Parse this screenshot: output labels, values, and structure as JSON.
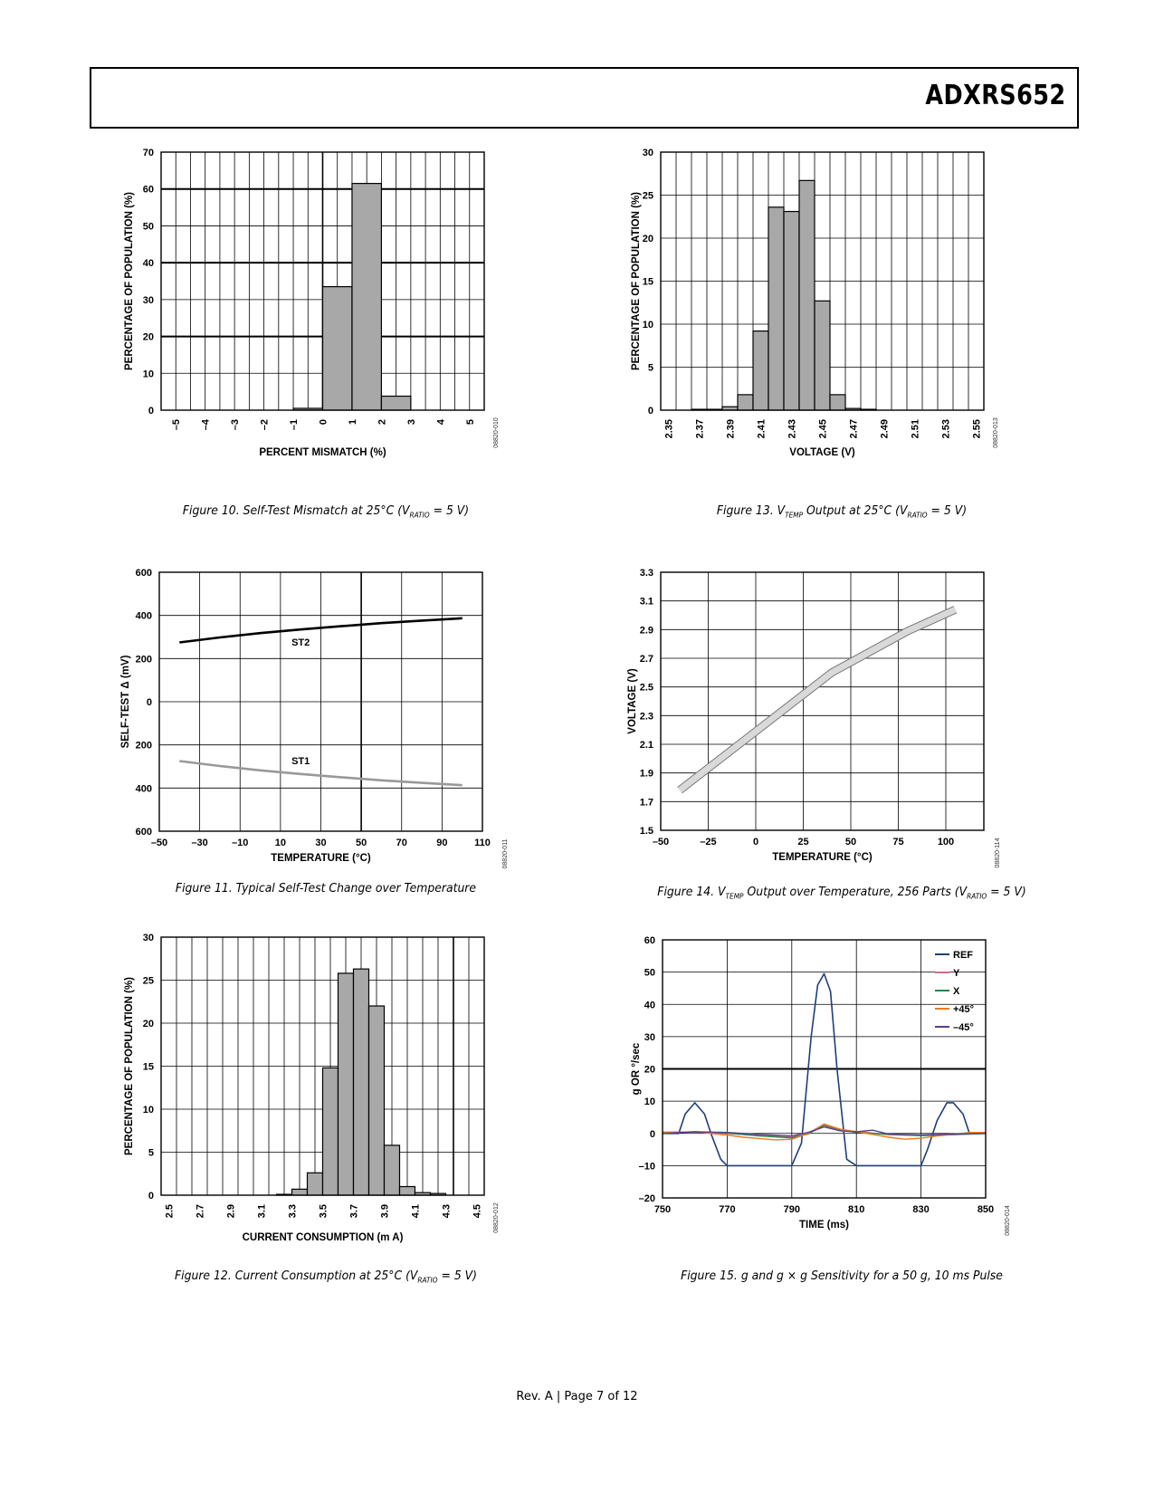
{
  "header": {
    "part_number": "ADXRS652"
  },
  "footer": {
    "text": "Rev. A | Page 7 of 12"
  },
  "figures": [
    {
      "id": "fig10",
      "caption_main": "Figure 10. Self-Test Mismatch at 25°C (V",
      "caption_sub": "RATIO",
      "caption_tail": " = 5 V)",
      "code": "08820-010"
    },
    {
      "id": "fig11",
      "caption_main": "Figure 11. Typical Self-Test Change over Temperature",
      "caption_sub": "",
      "caption_tail": "",
      "code": "08820-011"
    },
    {
      "id": "fig12",
      "caption_main": "Figure 12. Current Consumption at 25°C (V",
      "caption_sub": "RATIO",
      "caption_tail": " = 5 V)",
      "code": "08820-012"
    },
    {
      "id": "fig13",
      "caption_pre": "Figure 13. V",
      "caption_sub1": "TEMP",
      "caption_mid": " Output at 25°C (V",
      "caption_sub2": "RATIO",
      "caption_tail": " = 5 V)",
      "code": "08820-013"
    },
    {
      "id": "fig14",
      "caption_pre": "Figure 14. V",
      "caption_sub1": "TEMP",
      "caption_mid": " Output over Temperature, 256 Parts (V",
      "caption_sub2": "RATIO",
      "caption_tail": " = 5 V)",
      "code": "08820-114"
    },
    {
      "id": "fig15",
      "caption_main": "Figure 15. g and g × g Sensitivity for a 50 g, 10 ms Pulse",
      "code": "08820-014"
    }
  ],
  "chart_data": [
    {
      "id": "fig10",
      "type": "bar",
      "xlabel": "PERCENT MISMATCH (%)",
      "ylabel": "PERCENTAGE OF POPULATION (%)",
      "xlim": [
        -5.5,
        5.5
      ],
      "ylim": [
        0,
        70
      ],
      "xticks": [
        "–5",
        "–4",
        "–3",
        "–2",
        "–1",
        "0",
        "1",
        "2",
        "3",
        "4",
        "5"
      ],
      "xtick_values": [
        -5,
        -4,
        -3,
        -2,
        -1,
        0,
        1,
        2,
        3,
        4,
        5
      ],
      "yticks": [
        "0",
        "10",
        "20",
        "30",
        "40",
        "50",
        "60",
        "70"
      ],
      "bins": [
        [
          -1,
          0,
          0.5
        ],
        [
          0,
          1,
          33.5
        ],
        [
          1,
          2,
          61.5
        ],
        [
          2,
          3,
          3.8
        ]
      ],
      "grid": true
    },
    {
      "id": "fig11",
      "type": "line",
      "xlabel": "TEMPERATURE (°C)",
      "ylabel": "SELF-TEST Δ (mV)",
      "xlim": [
        -50,
        110
      ],
      "ylim": [
        -600,
        600
      ],
      "xticks": [
        "–50",
        "–30",
        "–10",
        "10",
        "30",
        "50",
        "70",
        "90",
        "110"
      ],
      "xtick_values": [
        -50,
        -30,
        -10,
        10,
        30,
        50,
        70,
        90,
        110
      ],
      "yticks": [
        "600",
        "400",
        "200",
        "0",
        "200",
        "400",
        "600"
      ],
      "ytick_values": [
        600,
        400,
        200,
        0,
        -200,
        -400,
        -600
      ],
      "series": [
        {
          "name": "ST2",
          "x": [
            -40,
            -20,
            0,
            20,
            40,
            60,
            80,
            100
          ],
          "y": [
            275,
            298,
            318,
            335,
            350,
            364,
            376,
            387
          ]
        },
        {
          "name": "ST1",
          "x": [
            -40,
            -20,
            0,
            20,
            40,
            60,
            80,
            100
          ],
          "y": [
            -275,
            -298,
            -318,
            -335,
            -350,
            -364,
            -376,
            -387
          ]
        }
      ],
      "grid": true
    },
    {
      "id": "fig12",
      "type": "bar",
      "xlabel": "CURRENT CONSUMPTION (m A)",
      "ylabel": "PERCENTAGE OF POPULATION (%)",
      "xlim": [
        2.45,
        4.55
      ],
      "ylim": [
        0,
        30
      ],
      "xticks": [
        "2.5",
        "2.7",
        "2.9",
        "3.1",
        "3.3",
        "3.5",
        "3.7",
        "3.9",
        "4.1",
        "4.3",
        "4.5"
      ],
      "xtick_values": [
        2.5,
        2.7,
        2.9,
        3.1,
        3.3,
        3.5,
        3.7,
        3.9,
        4.1,
        4.3,
        4.5
      ],
      "yticks": [
        "0",
        "5",
        "10",
        "15",
        "20",
        "25",
        "30"
      ],
      "bins": [
        [
          3.2,
          3.3,
          0.1
        ],
        [
          3.3,
          3.4,
          0.7
        ],
        [
          3.4,
          3.5,
          2.6
        ],
        [
          3.5,
          3.6,
          14.8
        ],
        [
          3.6,
          3.7,
          25.8
        ],
        [
          3.7,
          3.8,
          26.3
        ],
        [
          3.8,
          3.9,
          22.0
        ],
        [
          3.9,
          4.0,
          5.8
        ],
        [
          4.0,
          4.1,
          1.0
        ],
        [
          4.1,
          4.2,
          0.3
        ],
        [
          4.2,
          4.3,
          0.2
        ]
      ],
      "grid": true
    },
    {
      "id": "fig13",
      "type": "bar",
      "xlabel": "VOLTAGE (V)",
      "ylabel": "PERCENTAGE OF POPULATION (%)",
      "xlim": [
        2.345,
        2.555
      ],
      "ylim": [
        0,
        30
      ],
      "xticks": [
        "2.35",
        "2.37",
        "2.39",
        "2.41",
        "2.43",
        "2.45",
        "2.47",
        "2.49",
        "2.51",
        "2.53",
        "2.55"
      ],
      "xtick_values": [
        2.35,
        2.37,
        2.39,
        2.41,
        2.43,
        2.45,
        2.47,
        2.49,
        2.51,
        2.53,
        2.55
      ],
      "yticks": [
        "0",
        "5",
        "10",
        "15",
        "20",
        "25",
        "30"
      ],
      "bins": [
        [
          2.365,
          2.375,
          0.1
        ],
        [
          2.375,
          2.385,
          0.1
        ],
        [
          2.385,
          2.395,
          0.4
        ],
        [
          2.395,
          2.405,
          1.8
        ],
        [
          2.405,
          2.415,
          9.2
        ],
        [
          2.415,
          2.425,
          23.6
        ],
        [
          2.425,
          2.435,
          23.1
        ],
        [
          2.435,
          2.445,
          26.7
        ],
        [
          2.445,
          2.455,
          12.7
        ],
        [
          2.455,
          2.465,
          1.8
        ],
        [
          2.465,
          2.475,
          0.2
        ],
        [
          2.475,
          2.485,
          0.1
        ]
      ],
      "grid": true
    },
    {
      "id": "fig14",
      "type": "line",
      "xlabel": "TEMPERATURE (°C)",
      "ylabel": "VOLTAGE (V)",
      "xlim": [
        -50,
        120
      ],
      "ylim": [
        1.5,
        3.3
      ],
      "xticks": [
        "–50",
        "–25",
        "0",
        "25",
        "50",
        "75",
        "100"
      ],
      "xtick_values": [
        -50,
        -25,
        0,
        25,
        50,
        75,
        100
      ],
      "yticks": [
        "1.5",
        "1.7",
        "1.9",
        "2.1",
        "2.3",
        "2.5",
        "2.7",
        "2.9",
        "3.1",
        "3.3"
      ],
      "series": [
        {
          "name": "",
          "x": [
            -40,
            0,
            40,
            80,
            105
          ],
          "y": [
            1.78,
            2.19,
            2.6,
            2.89,
            3.04
          ]
        }
      ],
      "grid": true
    },
    {
      "id": "fig15",
      "type": "line",
      "xlabel": "TIME (ms)",
      "ylabel": "g OR °/sec",
      "xlim": [
        750,
        850
      ],
      "ylim": [
        -20,
        60
      ],
      "xticks": [
        "750",
        "770",
        "790",
        "810",
        "830",
        "850"
      ],
      "xtick_values": [
        750,
        770,
        790,
        810,
        830,
        850
      ],
      "yticks": [
        "–20",
        "–10",
        "0",
        "10",
        "20",
        "30",
        "40",
        "50",
        "60"
      ],
      "ytick_values": [
        -20,
        -10,
        0,
        10,
        20,
        30,
        40,
        50,
        60
      ],
      "legend_position": "top-right",
      "series": [
        {
          "name": "REF",
          "color": "#1f3f7a",
          "x": [
            750,
            755,
            757,
            760,
            763,
            765,
            768,
            770,
            775,
            780,
            785,
            790,
            793,
            796,
            798,
            800,
            802,
            804,
            807,
            810,
            815,
            820,
            825,
            830,
            832,
            835,
            838,
            840,
            843,
            845,
            848,
            850
          ],
          "y": [
            0,
            0,
            6,
            9.5,
            6,
            0,
            -8,
            -10,
            -10,
            -10,
            -10,
            -10,
            -3,
            30,
            46,
            49.5,
            44,
            20,
            -8,
            -10,
            -10,
            -10,
            -10,
            -10,
            -5,
            4,
            9.5,
            9.5,
            6,
            0,
            0,
            0
          ]
        },
        {
          "name": "Y",
          "color": "#d6688f",
          "x": [
            750,
            760,
            770,
            780,
            790,
            795,
            800,
            805,
            810,
            820,
            830,
            840,
            850
          ],
          "y": [
            0.4,
            0.4,
            0,
            -0.6,
            -1.2,
            0,
            2.2,
            1,
            0.6,
            -0.4,
            -0.6,
            -0.2,
            0.2
          ]
        },
        {
          "name": "X",
          "color": "#1e8a4a",
          "x": [
            750,
            760,
            770,
            780,
            790,
            795,
            800,
            805,
            810,
            820,
            830,
            840,
            850
          ],
          "y": [
            0.2,
            0.5,
            0.1,
            -0.8,
            -1.4,
            -0.2,
            2.6,
            1.2,
            0.3,
            -0.3,
            -0.7,
            -0.4,
            0
          ]
        },
        {
          "name": "+45°",
          "color": "#f07a1e",
          "x": [
            750,
            760,
            770,
            775,
            780,
            785,
            790,
            795,
            800,
            805,
            810,
            815,
            820,
            825,
            830,
            835,
            840,
            845,
            850
          ],
          "y": [
            0.3,
            0.5,
            -0.5,
            -1.2,
            -1.6,
            -2,
            -1.8,
            0,
            2.9,
            1.3,
            0.5,
            -0.3,
            -1.2,
            -1.8,
            -1.5,
            -0.8,
            -0.3,
            0.3,
            0.3
          ]
        },
        {
          "name": "–45°",
          "color": "#5a3f8e",
          "x": [
            750,
            760,
            770,
            780,
            790,
            795,
            800,
            805,
            810,
            815,
            820,
            830,
            840,
            850
          ],
          "y": [
            0,
            0.5,
            0.3,
            -0.3,
            -0.8,
            0.3,
            2,
            0.8,
            0.5,
            1,
            -0.2,
            -0.5,
            -0.2,
            0
          ]
        }
      ],
      "grid": true
    }
  ]
}
